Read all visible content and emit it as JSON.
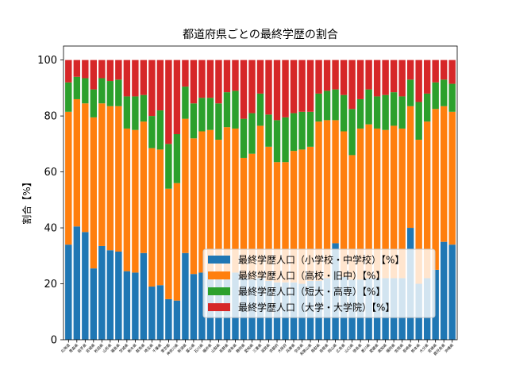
{
  "chart_data": {
    "type": "bar",
    "stacked": true,
    "title": "都道府県ごとの最終学歴の割合",
    "xlabel": "",
    "ylabel": "割合【%】",
    "ylim": [
      0,
      105
    ],
    "yticks": [
      0,
      20,
      40,
      60,
      80,
      100
    ],
    "grid": false,
    "legend_position": "lower-right",
    "categories": [
      "北海道",
      "青森県",
      "岩手県",
      "宮城県",
      "秋田県",
      "山形県",
      "福島県",
      "茨城県",
      "栃木県",
      "群馬県",
      "埼玉県",
      "千葉県",
      "東京都",
      "神奈川県",
      "新潟県",
      "富山県",
      "石川県",
      "福井県",
      "山梨県",
      "長野県",
      "岐阜県",
      "静岡県",
      "愛知県",
      "三重県",
      "滋賀県",
      "京都府",
      "大阪府",
      "兵庫県",
      "奈良県",
      "和歌山県",
      "鳥取県",
      "島根県",
      "岡山県",
      "広島県",
      "山口県",
      "徳島県",
      "香川県",
      "愛媛県",
      "高知県",
      "福岡県",
      "佐賀県",
      "長崎県",
      "熊本県",
      "大分県",
      "宮崎県",
      "鹿児島県",
      "沖縄県"
    ],
    "series": [
      {
        "name": "最終学歴人口（小学校・中学校）【%】",
        "color": "#1f77b4",
        "values": [
          34,
          40.5,
          38.5,
          25.5,
          33.5,
          32,
          31.5,
          24.5,
          24,
          31,
          19,
          19.5,
          14.5,
          14,
          31,
          23.5,
          24,
          24.5,
          23,
          23,
          24,
          22,
          21.5,
          22,
          21,
          20.5,
          20.5,
          20.5,
          20,
          21,
          21,
          22,
          34.5,
          22.5,
          21.5,
          21.5,
          22,
          22,
          22,
          22,
          22,
          40,
          20,
          22,
          25,
          35,
          34
        ]
      },
      {
        "name": "最終学歴人口（高校・旧中）【%】",
        "color": "#ff7f0e",
        "values": [
          47.5,
          45.5,
          46,
          54,
          51,
          51.5,
          52,
          51,
          51,
          47,
          49.5,
          48.5,
          39.5,
          42,
          48,
          48.5,
          50.5,
          50.5,
          48.5,
          53,
          51.5,
          43,
          45,
          54.5,
          48,
          43,
          43,
          47,
          48,
          48,
          57,
          56.5,
          44,
          52,
          44.5,
          54,
          55,
          53.5,
          53,
          54.5,
          53.5,
          43.5,
          51.5,
          56,
          57.5,
          48.5,
          47.5
        ]
      },
      {
        "name": "最終学歴人口（短大・高専）【%】",
        "color": "#2ca02c",
        "values": [
          10.5,
          8,
          9,
          10,
          9,
          9,
          9.5,
          11.5,
          12,
          9.5,
          11.5,
          14,
          16,
          17.5,
          11.5,
          12.5,
          12,
          11.5,
          13,
          12.5,
          13.5,
          14,
          14.5,
          11.5,
          11.5,
          15,
          16,
          13.5,
          13.5,
          12.5,
          10,
          10.5,
          11,
          13,
          16.5,
          10.5,
          12.5,
          11.5,
          12.5,
          12,
          11.5,
          9.5,
          13.5,
          10,
          9.5,
          9.5,
          10
        ]
      },
      {
        "name": "最終学歴人口（大学・大学院）【%】",
        "color": "#d62728",
        "values": [
          8,
          6,
          6.5,
          10.5,
          6.5,
          7.5,
          7,
          13,
          13,
          12.5,
          20,
          18,
          30,
          26.5,
          9.5,
          15.5,
          13.5,
          13.5,
          15.5,
          11.5,
          11,
          21,
          19,
          12,
          19.5,
          21.5,
          20.5,
          19,
          18.5,
          18.5,
          12,
          11,
          10.5,
          12.5,
          17.5,
          14,
          10.5,
          13,
          12.5,
          11.5,
          13,
          7,
          15,
          12,
          8,
          7,
          8.5
        ]
      }
    ]
  }
}
